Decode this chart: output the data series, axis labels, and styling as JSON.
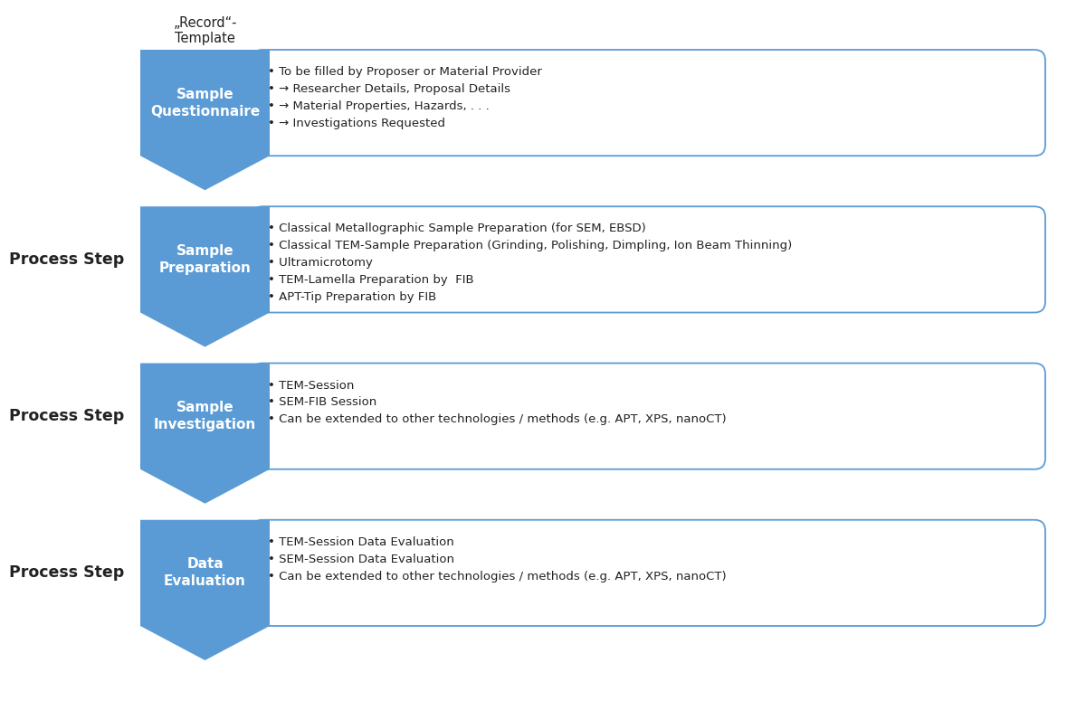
{
  "steps": [
    {
      "label": "Sample\nQuestionnaire",
      "top_label": "„Record“-\nTemplate",
      "left_label": null,
      "bullet_points": [
        "• To be filled by Proposer or Material Provider",
        "• → Researcher Details, Proposal Details",
        "• → Material Properties, Hazards, . . .",
        "• → Investigations Requested"
      ]
    },
    {
      "label": "Sample\nPreparation",
      "top_label": null,
      "left_label": "Process Step",
      "bullet_points": [
        "• Classical Metallographic Sample Preparation (for SEM, EBSD)",
        "• Classical TEM-Sample Preparation (Grinding, Polishing, Dimpling, Ion Beam Thinning)",
        "• Ultramicrotomy",
        "• TEM-Lamella Preparation by  FIB",
        "• APT-Tip Preparation by FIB"
      ]
    },
    {
      "label": "Sample\nInvestigation",
      "top_label": null,
      "left_label": "Process Step",
      "bullet_points": [
        "• TEM-Session",
        "• SEM-FIB Session",
        "• Can be extended to other technologies / methods (e.g. APT, XPS, nanoCT)"
      ]
    },
    {
      "label": "Data\nEvaluation",
      "top_label": null,
      "left_label": "Process Step",
      "bullet_points": [
        "• TEM-Session Data Evaluation",
        "• SEM-Session Data Evaluation",
        "• Can be extended to other technologies / methods (e.g. APT, XPS, nanoCT)"
      ]
    }
  ],
  "arrow_color": "#5B9BD5",
  "box_border_color": "#5B9BD5",
  "background_color": "#ffffff",
  "text_color_arrow": "#ffffff",
  "text_color_bullets": "#222222",
  "text_color_left": "#222222",
  "text_color_top": "#222222",
  "fig_width": 12.0,
  "fig_height": 7.96,
  "dpi": 100
}
